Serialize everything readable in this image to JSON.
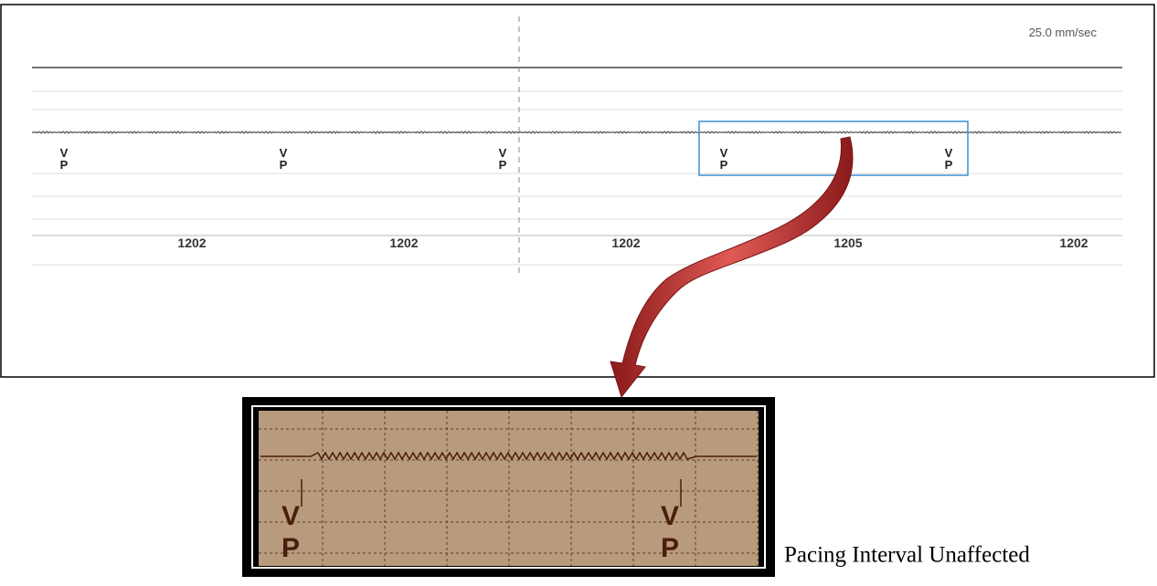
{
  "strip": {
    "speed": "25.0 mm/sec",
    "markers": [
      {
        "upper": "V",
        "lower": "P"
      },
      {
        "upper": "V",
        "lower": "P"
      },
      {
        "upper": "V",
        "lower": "P"
      },
      {
        "upper": "V",
        "lower": "P"
      },
      {
        "upper": "V",
        "lower": "P"
      }
    ],
    "intervals": [
      1202,
      1202,
      1202,
      1205,
      1202
    ]
  },
  "zoom": {
    "markers": [
      {
        "upper": "V",
        "lower": "P"
      },
      {
        "upper": "V",
        "lower": "P"
      }
    ]
  },
  "caption": "Pacing Interval Unaffected"
}
